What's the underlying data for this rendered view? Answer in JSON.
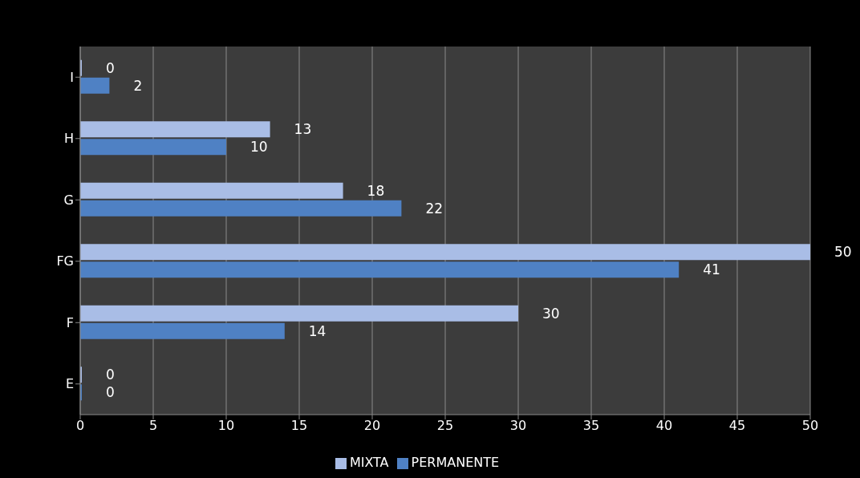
{
  "chart_data": {
    "type": "bar",
    "orientation": "horizontal",
    "categories": [
      "I",
      "H",
      "G",
      "FG",
      "F",
      "E"
    ],
    "series": [
      {
        "name": "MIXTA",
        "color": "#a9bde6",
        "values": [
          0,
          13,
          18,
          50,
          30,
          0
        ]
      },
      {
        "name": "PERMANENTE",
        "color": "#4f81c4",
        "values": [
          2,
          10,
          22,
          41,
          14,
          0
        ]
      }
    ],
    "xlim": [
      0,
      50
    ],
    "xticks": [
      0,
      5,
      10,
      15,
      20,
      25,
      30,
      35,
      40,
      45,
      50
    ],
    "grid": "x",
    "legend": "bottom",
    "data_labels": true
  }
}
